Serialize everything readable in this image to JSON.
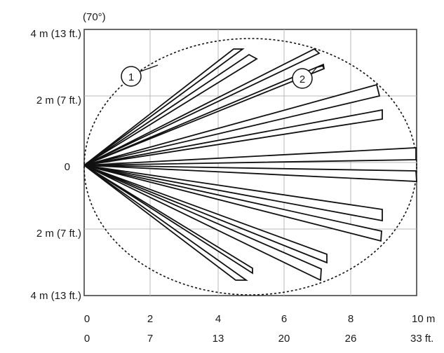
{
  "diagram": {
    "angle_label": "(70°)",
    "y_labels": [
      "4 m (13 ft.)",
      "2 m (7 ft.)",
      "0",
      "2 m (7 ft.)",
      "4 m (13 ft.)"
    ],
    "x_labels_m": [
      "0",
      "2",
      "4",
      "6",
      "8",
      "10 m"
    ],
    "x_labels_ft": [
      "0",
      "7",
      "13",
      "20",
      "26",
      "33 ft."
    ],
    "callouts": [
      "1",
      "2"
    ],
    "callout_meaning": [
      "coverage-boundary",
      "detection-zone"
    ],
    "zone_count": 15,
    "grid": true
  }
}
